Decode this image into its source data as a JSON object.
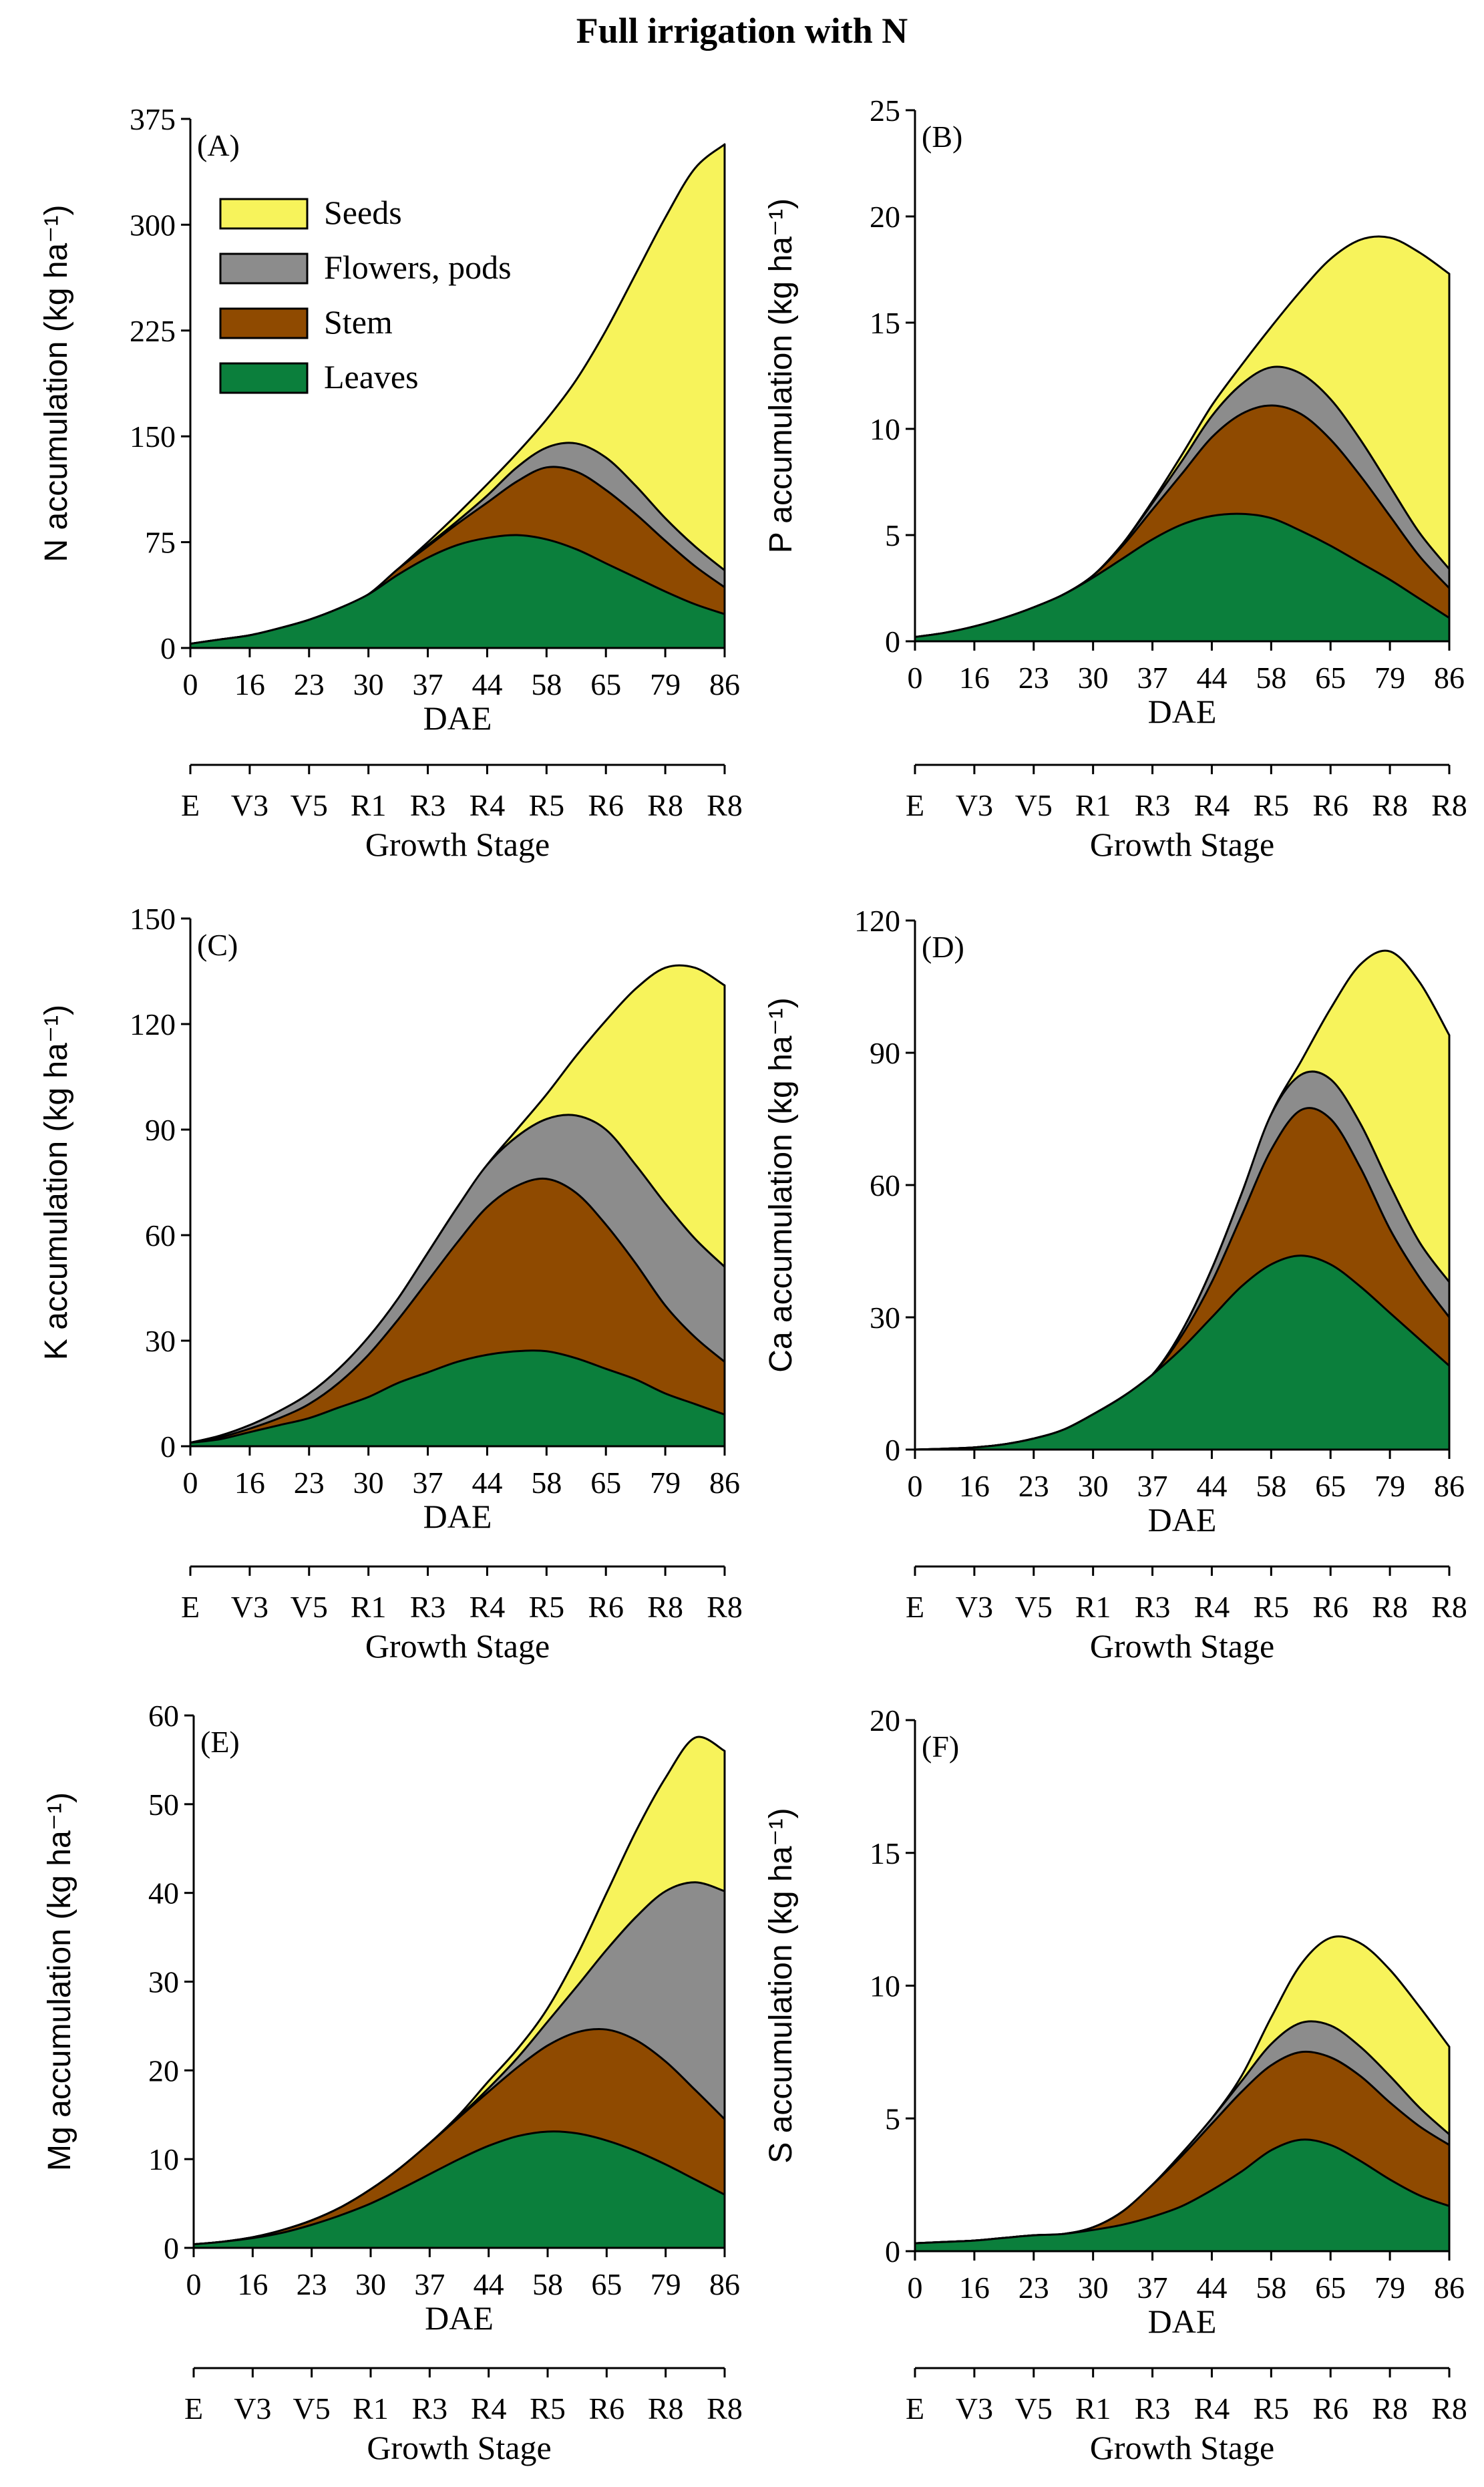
{
  "title": "Full irrigation with N",
  "colors": {
    "seeds": "#f7f35b",
    "flowers_pods": "#8c8c8c",
    "stem": "#8f4a00",
    "leaves": "#0b7f3c"
  },
  "legend": [
    "Seeds",
    "Flowers, pods",
    "Stem",
    "Leaves"
  ],
  "x_tick_labels": [
    "0",
    "16",
    "23",
    "30",
    "37",
    "44",
    "58",
    "65",
    "79",
    "86"
  ],
  "stage_tick_labels": [
    "E",
    "V3",
    "V5",
    "R1",
    "R3",
    "R4",
    "R5",
    "R6",
    "R8",
    "R8"
  ],
  "chart_data": [
    {
      "type": "area",
      "panel": "(A)",
      "ylabel": "N  accumulation (kg ha⁻¹)",
      "xlabel": "DAE",
      "stage_label": "Growth Stage",
      "ylim": [
        0,
        375
      ],
      "yticks": [
        0,
        75,
        150,
        225,
        300,
        375
      ],
      "yticks_text": [
        "0",
        "75",
        "150",
        "225",
        "300",
        "375"
      ],
      "x_index": [
        0,
        0.5,
        1,
        1.5,
        2,
        2.5,
        3,
        3.5,
        4,
        4.5,
        5,
        5.5,
        6,
        6.5,
        7,
        7.5,
        8,
        8.5,
        9
      ],
      "series": [
        {
          "name": "Leaves",
          "values": [
            3,
            6,
            9,
            14,
            20,
            28,
            38,
            52,
            64,
            73,
            78,
            80,
            77,
            70,
            60,
            50,
            40,
            31,
            24
          ]
        },
        {
          "name": "Stem",
          "values": [
            3,
            6,
            9,
            14,
            20,
            28,
            38,
            56,
            72,
            88,
            103,
            118,
            128,
            125,
            112,
            95,
            76,
            58,
            43
          ]
        },
        {
          "name": "Flowers, pods",
          "values": [
            3,
            6,
            9,
            14,
            20,
            28,
            38,
            56,
            73,
            90,
            108,
            128,
            142,
            145,
            135,
            115,
            92,
            72,
            55
          ]
        },
        {
          "name": "Seeds",
          "values": [
            3,
            6,
            9,
            14,
            20,
            28,
            38,
            56,
            75,
            95,
            116,
            138,
            162,
            190,
            225,
            265,
            305,
            340,
            357
          ]
        }
      ]
    },
    {
      "type": "area",
      "panel": "(B)",
      "ylabel": "P  accumulation (kg ha⁻¹)",
      "xlabel": "DAE",
      "stage_label": "Growth Stage",
      "ylim": [
        0,
        25
      ],
      "yticks": [
        0,
        5,
        10,
        15,
        20,
        25
      ],
      "yticks_text": [
        "0",
        "5",
        "10",
        "15",
        "20",
        "25"
      ],
      "x_index": [
        0,
        0.5,
        1,
        1.5,
        2,
        2.5,
        3,
        3.5,
        4,
        4.5,
        5,
        5.5,
        6,
        6.5,
        7,
        7.5,
        8,
        8.5,
        9
      ],
      "series": [
        {
          "name": "Leaves",
          "values": [
            0.2,
            0.4,
            0.7,
            1.1,
            1.6,
            2.2,
            3.0,
            3.9,
            4.8,
            5.5,
            5.9,
            6.0,
            5.8,
            5.2,
            4.5,
            3.7,
            2.9,
            2.0,
            1.1
          ]
        },
        {
          "name": "Stem",
          "values": [
            0.2,
            0.4,
            0.7,
            1.1,
            1.6,
            2.2,
            3.1,
            4.5,
            6.2,
            7.9,
            9.6,
            10.7,
            11.1,
            10.7,
            9.5,
            7.8,
            5.9,
            4.0,
            2.5
          ]
        },
        {
          "name": "Flowers, pods",
          "values": [
            0.2,
            0.4,
            0.7,
            1.1,
            1.6,
            2.2,
            3.1,
            4.6,
            6.5,
            8.5,
            10.6,
            12.1,
            12.9,
            12.6,
            11.4,
            9.5,
            7.3,
            5.1,
            3.4
          ]
        },
        {
          "name": "Seeds",
          "values": [
            0.2,
            0.4,
            0.7,
            1.1,
            1.6,
            2.2,
            3.1,
            4.6,
            6.6,
            8.8,
            11.1,
            13.0,
            14.8,
            16.5,
            18.0,
            18.9,
            19.0,
            18.3,
            17.3
          ]
        }
      ]
    },
    {
      "type": "area",
      "panel": "(C)",
      "ylabel": "K  accumulation (kg ha⁻¹)",
      "xlabel": "DAE",
      "stage_label": "Growth Stage",
      "ylim": [
        0,
        150
      ],
      "yticks": [
        0,
        30,
        60,
        90,
        120,
        150
      ],
      "yticks_text": [
        "0",
        "30",
        "60",
        "90",
        "120",
        "150"
      ],
      "x_index": [
        0,
        0.5,
        1,
        1.5,
        2,
        2.5,
        3,
        3.5,
        4,
        4.5,
        5,
        5.5,
        6,
        6.5,
        7,
        7.5,
        8,
        8.5,
        9
      ],
      "series": [
        {
          "name": "Leaves",
          "values": [
            1,
            2,
            4,
            6,
            8,
            11,
            14,
            18,
            21,
            24,
            26,
            27,
            27,
            25,
            22,
            19,
            15,
            12,
            9
          ]
        },
        {
          "name": "Stem",
          "values": [
            1,
            2.5,
            5,
            8,
            12,
            18,
            26,
            36,
            47,
            58,
            68,
            74,
            76,
            72,
            63,
            52,
            40,
            31,
            24
          ]
        },
        {
          "name": "Flowers, pods",
          "values": [
            1,
            3,
            6,
            10,
            15,
            22,
            31,
            42,
            55,
            68,
            80,
            88,
            93,
            94,
            90,
            80,
            69,
            59,
            51
          ]
        },
        {
          "name": "Seeds",
          "values": [
            1,
            3,
            6,
            10,
            15,
            22,
            31,
            42,
            55,
            68,
            80,
            90,
            100,
            111,
            121,
            130,
            136,
            136,
            131
          ]
        }
      ]
    },
    {
      "type": "area",
      "panel": "(D)",
      "ylabel": "Ca  accumulation (kg ha⁻¹)",
      "xlabel": "DAE",
      "stage_label": "Growth Stage",
      "ylim": [
        0,
        120
      ],
      "yticks": [
        0,
        30,
        60,
        90,
        120
      ],
      "yticks_text": [
        "0",
        "30",
        "60",
        "90",
        "120"
      ],
      "x_index": [
        0,
        0.5,
        1,
        1.5,
        2,
        2.5,
        3,
        3.5,
        4,
        4.5,
        5,
        5.5,
        6,
        6.5,
        7,
        7.5,
        8,
        8.5,
        9
      ],
      "series": [
        {
          "name": "Leaves",
          "values": [
            0,
            0.2,
            0.5,
            1.2,
            2.5,
            4.5,
            8,
            12,
            17,
            23,
            30,
            37,
            42,
            44,
            42,
            37,
            31,
            25,
            19
          ]
        },
        {
          "name": "Stem",
          "values": [
            0,
            0.2,
            0.5,
            1.2,
            2.5,
            4.5,
            8,
            12,
            17,
            26,
            38,
            53,
            68,
            77,
            75,
            64,
            50,
            39,
            30
          ]
        },
        {
          "name": "Flowers, pods",
          "values": [
            0,
            0.2,
            0.5,
            1.2,
            2.5,
            4.5,
            8,
            12,
            17,
            27,
            41,
            58,
            76,
            85,
            84,
            74,
            60,
            47,
            38
          ]
        },
        {
          "name": "Seeds",
          "values": [
            0,
            0.2,
            0.5,
            1.2,
            2.5,
            4.5,
            8,
            12,
            17,
            27,
            41,
            58,
            76,
            88,
            100,
            110,
            113,
            106,
            94
          ]
        }
      ]
    },
    {
      "type": "area",
      "panel": "(E)",
      "ylabel": "Mg  accumulation (kg ha⁻¹)",
      "xlabel": "DAE",
      "stage_label": "Growth Stage",
      "ylim": [
        0,
        60
      ],
      "yticks": [
        0,
        10,
        20,
        30,
        40,
        50,
        60
      ],
      "yticks_text": [
        "0",
        "10",
        "20",
        "30",
        "40",
        "50",
        "60"
      ],
      "x_index": [
        0,
        0.5,
        1,
        1.5,
        2,
        2.5,
        3,
        3.5,
        4,
        4.5,
        5,
        5.5,
        6,
        6.5,
        7,
        7.5,
        8,
        8.5,
        9
      ],
      "series": [
        {
          "name": "Leaves",
          "values": [
            0.4,
            0.7,
            1.1,
            1.7,
            2.6,
            3.7,
            5.0,
            6.6,
            8.3,
            10.0,
            11.5,
            12.6,
            13.1,
            12.9,
            12.1,
            10.9,
            9.4,
            7.7,
            6.0
          ]
        },
        {
          "name": "Stem",
          "values": [
            0.4,
            0.7,
            1.2,
            2.0,
            3.1,
            4.6,
            6.6,
            9.0,
            11.8,
            14.7,
            17.6,
            20.4,
            22.8,
            24.3,
            24.6,
            23.4,
            21.0,
            17.8,
            14.5
          ]
        },
        {
          "name": "Flowers, pods",
          "values": [
            0.4,
            0.7,
            1.2,
            2.0,
            3.1,
            4.6,
            6.6,
            9.0,
            11.8,
            14.8,
            18.0,
            21.5,
            25.5,
            29.5,
            33.6,
            37.3,
            40.2,
            41.2,
            40.2
          ]
        },
        {
          "name": "Seeds",
          "values": [
            0.4,
            0.7,
            1.2,
            2.0,
            3.1,
            4.6,
            6.6,
            9.0,
            11.8,
            15.0,
            18.8,
            22.5,
            27.0,
            33.0,
            40.0,
            47.0,
            53.0,
            57.5,
            56.0
          ]
        }
      ]
    },
    {
      "type": "area",
      "panel": "(F)",
      "ylabel": "S  accumulation (kg ha⁻¹)",
      "xlabel": "DAE",
      "stage_label": "Growth Stage",
      "ylim": [
        0,
        20
      ],
      "yticks": [
        0,
        5,
        10,
        15,
        20
      ],
      "yticks_text": [
        "0",
        "5",
        "10",
        "15",
        "20"
      ],
      "x_index": [
        0,
        0.5,
        1,
        1.5,
        2,
        2.5,
        3,
        3.5,
        4,
        4.5,
        5,
        5.5,
        6,
        6.5,
        7,
        7.5,
        8,
        8.5,
        9
      ],
      "series": [
        {
          "name": "Leaves",
          "values": [
            0.3,
            0.35,
            0.4,
            0.5,
            0.6,
            0.65,
            0.8,
            1.0,
            1.3,
            1.7,
            2.3,
            3.0,
            3.8,
            4.2,
            4.0,
            3.4,
            2.7,
            2.1,
            1.7
          ]
        },
        {
          "name": "Stem",
          "values": [
            0.3,
            0.35,
            0.4,
            0.5,
            0.6,
            0.65,
            0.9,
            1.5,
            2.5,
            3.6,
            4.8,
            6.0,
            7.0,
            7.5,
            7.3,
            6.6,
            5.6,
            4.7,
            4.0
          ]
        },
        {
          "name": "Flowers, pods",
          "values": [
            0.3,
            0.35,
            0.4,
            0.5,
            0.6,
            0.65,
            0.9,
            1.5,
            2.5,
            3.7,
            5.0,
            6.4,
            7.8,
            8.6,
            8.5,
            7.7,
            6.6,
            5.4,
            4.4
          ]
        },
        {
          "name": "Seeds",
          "values": [
            0.3,
            0.35,
            0.4,
            0.5,
            0.6,
            0.65,
            0.9,
            1.5,
            2.5,
            3.7,
            5.0,
            6.6,
            8.8,
            10.8,
            11.8,
            11.6,
            10.6,
            9.2,
            7.7
          ]
        }
      ]
    }
  ]
}
